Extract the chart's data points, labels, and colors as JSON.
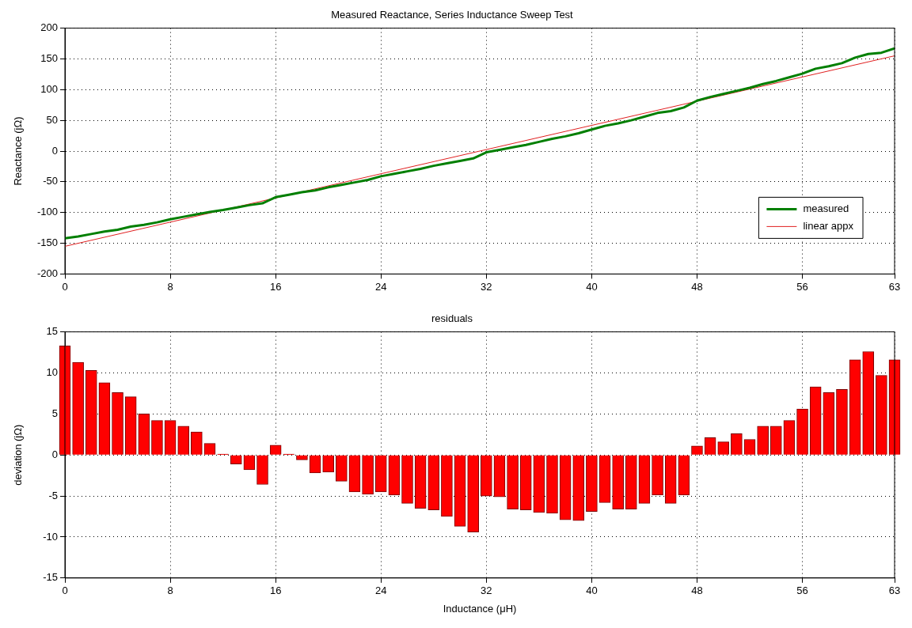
{
  "chart_data": [
    {
      "type": "line",
      "title": "Measured Reactance, Series Inductance Sweep Test",
      "ylabel": "Reactance (jΩ)",
      "xlim": [
        0,
        63
      ],
      "xticks": [
        0,
        8,
        16,
        24,
        32,
        40,
        48,
        56,
        63
      ],
      "ylim": [
        -200,
        200
      ],
      "yticks": [
        -200,
        -150,
        -100,
        -50,
        0,
        50,
        100,
        150,
        200
      ],
      "grid": true,
      "legend": "bottom right",
      "series": [
        {
          "name": "measured",
          "color": "#007f00",
          "x": [
            0,
            1,
            2,
            3,
            4,
            5,
            6,
            7,
            8,
            9,
            10,
            11,
            12,
            13,
            14,
            15,
            16,
            17,
            18,
            19,
            20,
            21,
            22,
            23,
            24,
            25,
            26,
            27,
            28,
            29,
            30,
            31,
            32,
            33,
            34,
            35,
            36,
            37,
            38,
            39,
            40,
            41,
            42,
            43,
            44,
            45,
            46,
            47,
            48,
            49,
            50,
            51,
            52,
            53,
            54,
            55,
            56,
            57,
            58,
            59,
            60,
            61,
            62,
            63
          ],
          "values": [
            -142,
            -139,
            -135,
            -131,
            -128,
            -123,
            -120,
            -116,
            -111,
            -107,
            -103,
            -99,
            -96,
            -92,
            -88,
            -85,
            -75,
            -71,
            -67,
            -64,
            -59,
            -55,
            -51,
            -47,
            -41,
            -37,
            -33,
            -29,
            -24,
            -20,
            -16,
            -12,
            -2,
            2,
            6,
            10,
            15,
            20,
            24,
            29,
            35,
            41,
            45,
            50,
            56,
            62,
            65,
            71,
            82,
            88,
            93,
            98,
            103,
            109,
            114,
            120,
            126,
            134,
            138,
            143,
            152,
            158,
            160,
            167
          ]
        },
        {
          "name": "linear appx",
          "color": "#e02020",
          "x": [
            0,
            63
          ],
          "values": [
            -155,
            155
          ]
        }
      ]
    },
    {
      "type": "bar",
      "title": "residuals",
      "xlabel": "Inductance (μH)",
      "ylabel": "deviation (jΩ)",
      "xlim": [
        0,
        63
      ],
      "xticks": [
        0,
        8,
        16,
        24,
        32,
        40,
        48,
        56,
        63
      ],
      "ylim": [
        -15,
        15
      ],
      "yticks": [
        -15,
        -10,
        -5,
        0,
        5,
        10,
        15
      ],
      "grid": true,
      "color": "#ff0000",
      "x": [
        0,
        1,
        2,
        3,
        4,
        5,
        6,
        7,
        8,
        9,
        10,
        11,
        12,
        13,
        14,
        15,
        16,
        17,
        18,
        19,
        20,
        21,
        22,
        23,
        24,
        25,
        26,
        27,
        28,
        29,
        30,
        31,
        32,
        33,
        34,
        35,
        36,
        37,
        38,
        39,
        40,
        41,
        42,
        43,
        44,
        45,
        46,
        47,
        48,
        49,
        50,
        51,
        52,
        53,
        54,
        55,
        56,
        57,
        58,
        59,
        60,
        61,
        62,
        63
      ],
      "values": [
        13.3,
        11.3,
        10.3,
        8.8,
        7.6,
        7.1,
        5.0,
        4.2,
        4.2,
        3.5,
        2.8,
        1.4,
        0.1,
        -1.1,
        -1.8,
        -3.6,
        1.2,
        0.1,
        -0.6,
        -2.2,
        -2.1,
        -3.2,
        -4.5,
        -4.8,
        -4.5,
        -4.9,
        -5.9,
        -6.5,
        -6.7,
        -7.5,
        -8.7,
        -9.4,
        -5.0,
        -5.1,
        -6.6,
        -6.7,
        -7.0,
        -7.1,
        -7.9,
        -8.0,
        -6.9,
        -5.8,
        -6.6,
        -6.6,
        -5.9,
        -4.9,
        -5.9,
        -4.9,
        1.1,
        2.1,
        1.6,
        2.6,
        1.9,
        3.5,
        3.5,
        4.2,
        5.6,
        8.3,
        7.6,
        8.0,
        11.6,
        12.6,
        9.7,
        11.6
      ]
    }
  ]
}
